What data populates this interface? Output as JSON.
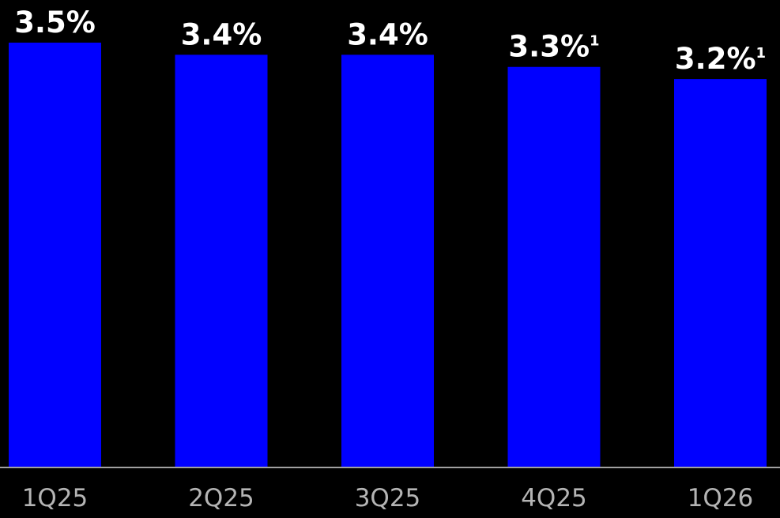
{
  "chart_data": {
    "type": "bar",
    "categories": [
      "1Q25",
      "2Q25",
      "3Q25",
      "4Q25",
      "1Q26"
    ],
    "values": [
      3.5,
      3.4,
      3.4,
      3.3,
      3.2
    ],
    "data_labels": [
      "3.5%",
      "3.4%",
      "3.4%",
      "3.3%",
      "3.2%"
    ],
    "label_footnotes": [
      "",
      "",
      "",
      "1",
      "1"
    ],
    "title": "",
    "xlabel": "",
    "ylabel": "",
    "ylim": [
      0,
      3.5
    ],
    "grid": false,
    "legend": "none",
    "colors": {
      "background": "#000000",
      "bar": "#0000FF",
      "label": "#FFFFFF",
      "tick_label": "#B4B4B4",
      "axis_line": "#A0A0A0"
    }
  }
}
